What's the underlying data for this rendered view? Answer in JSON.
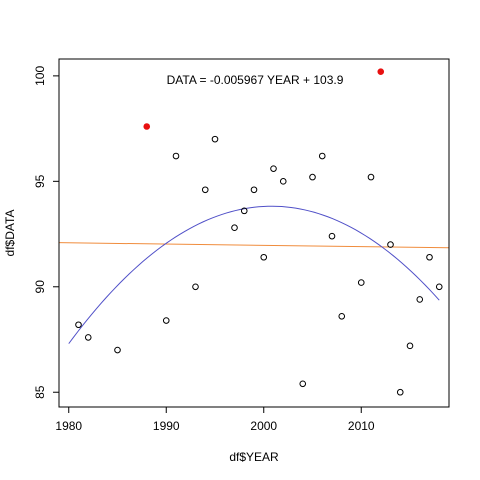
{
  "chart_data": {
    "type": "scatter",
    "xlabel": "df$YEAR",
    "ylabel": "df$DATA",
    "annotation": "DATA = -0.005967 YEAR + 103.9",
    "xlim": [
      1979,
      2019
    ],
    "ylim": [
      84.3,
      100.8
    ],
    "xticks": [
      1980,
      1990,
      2000,
      2010
    ],
    "yticks": [
      85,
      90,
      95,
      100
    ],
    "points": [
      {
        "x": 1981,
        "y": 88.2
      },
      {
        "x": 1982,
        "y": 87.6
      },
      {
        "x": 1985,
        "y": 87.0
      },
      {
        "x": 1990,
        "y": 88.4
      },
      {
        "x": 1991,
        "y": 96.2
      },
      {
        "x": 1993,
        "y": 90.0
      },
      {
        "x": 1994,
        "y": 94.6
      },
      {
        "x": 1995,
        "y": 97.0
      },
      {
        "x": 1997,
        "y": 92.8
      },
      {
        "x": 1998,
        "y": 93.6
      },
      {
        "x": 1999,
        "y": 94.6
      },
      {
        "x": 2000,
        "y": 91.4
      },
      {
        "x": 2001,
        "y": 95.6
      },
      {
        "x": 2002,
        "y": 95.0
      },
      {
        "x": 2004,
        "y": 85.4
      },
      {
        "x": 2005,
        "y": 95.2
      },
      {
        "x": 2006,
        "y": 96.2
      },
      {
        "x": 2007,
        "y": 92.4
      },
      {
        "x": 2008,
        "y": 88.6
      },
      {
        "x": 2010,
        "y": 90.2
      },
      {
        "x": 2011,
        "y": 95.2
      },
      {
        "x": 2013,
        "y": 92.0
      },
      {
        "x": 2014,
        "y": 85.0
      },
      {
        "x": 2015,
        "y": 87.2
      },
      {
        "x": 2016,
        "y": 89.4
      },
      {
        "x": 2017,
        "y": 91.4
      },
      {
        "x": 2018,
        "y": 90.0
      }
    ],
    "highlighted_points": [
      {
        "x": 1988,
        "y": 97.6
      },
      {
        "x": 2012,
        "y": 100.2
      }
    ],
    "linear_fit": {
      "slope": -0.005967,
      "intercept": 103.9,
      "color": "#f08c3c"
    },
    "quadratic_fit": {
      "x_range": [
        1980,
        2018
      ],
      "vertex_x": 2000.8,
      "vertex_y": 93.82,
      "a": -0.01506,
      "color": "#5050c8"
    },
    "point_color": "#000000",
    "highlight_color": "#e81010"
  }
}
